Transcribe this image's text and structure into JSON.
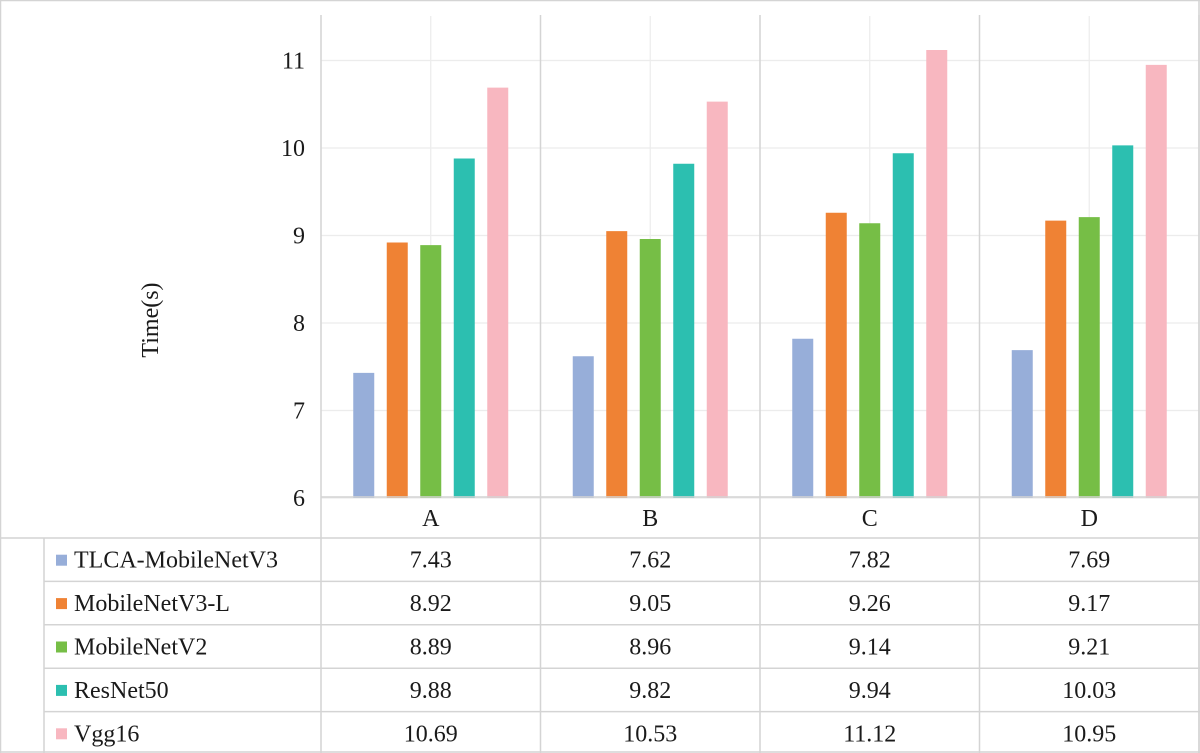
{
  "chart_data": {
    "type": "bar",
    "title": "",
    "xlabel": "",
    "ylabel": "Time(s)",
    "ylim": [
      6,
      11.5
    ],
    "yticks": [
      "6",
      "7",
      "8",
      "9",
      "10",
      "11"
    ],
    "grid": true,
    "legend": "data-table-left",
    "categories": [
      "A",
      "B",
      "C",
      "D"
    ],
    "series": [
      {
        "name": "TLCA-MobileNetV3",
        "color": "#97aed9",
        "values": [
          7.43,
          7.62,
          7.82,
          7.69
        ],
        "labels": [
          "7.43",
          "7.62",
          "7.82",
          "7.69"
        ]
      },
      {
        "name": "MobileNetV3-L",
        "color": "#ef8234",
        "values": [
          8.92,
          9.05,
          9.26,
          9.17
        ],
        "labels": [
          "8.92",
          "9.05",
          "9.26",
          "9.17"
        ]
      },
      {
        "name": "MobileNetV2",
        "color": "#76be46",
        "values": [
          8.89,
          8.96,
          9.14,
          9.21
        ],
        "labels": [
          "8.89",
          "8.96",
          "9.14",
          "9.21"
        ]
      },
      {
        "name": "ResNet50",
        "color": "#2cbfb0",
        "values": [
          9.88,
          9.82,
          9.94,
          10.03
        ],
        "labels": [
          "9.88",
          "9.82",
          "9.94",
          "10.03"
        ]
      },
      {
        "name": "Vgg16",
        "color": "#f8b7c0",
        "values": [
          10.69,
          10.53,
          11.12,
          10.95
        ],
        "labels": [
          "10.69",
          "10.53",
          "11.12",
          "10.95"
        ]
      }
    ]
  }
}
